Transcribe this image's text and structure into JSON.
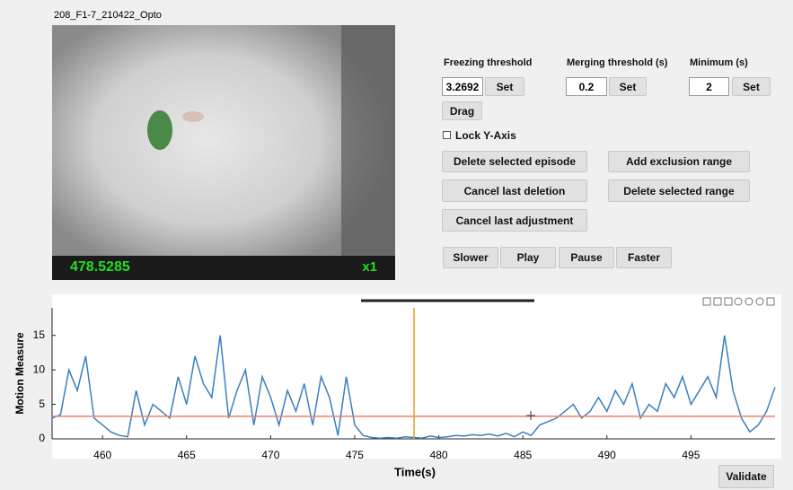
{
  "window": {
    "title": "208_F1-7_210422_Opto"
  },
  "video": {
    "speed": "x1"
  },
  "controls": {
    "freezing_label": "Freezing threshold",
    "merging_label": "Merging threshold (s)",
    "minimum_label": "Minimum (s)",
    "merging_value": "0.2",
    "minimum_value": "2",
    "set": "Set",
    "drag": "Drag",
    "lock_y": "Lock Y-Axis",
    "delete_episode": "Delete selected episode",
    "add_exclusion": "Add exclusion range",
    "cancel_deletion": "Cancel last deletion",
    "delete_range": "Delete selected range",
    "cancel_adjustment": "Cancel last adjustment",
    "slower": "Slower",
    "play": "Play",
    "pause": "Pause",
    "faster": "Faster",
    "validate": "Validate"
  },
  "chart_data": {
    "type": "line",
    "xlabel": "Time(s)",
    "ylabel": "Motion Measure",
    "xlim": [
      457,
      500
    ],
    "xticks": [
      460,
      465,
      470,
      475,
      480,
      485,
      490,
      495
    ],
    "ylim": [
      0,
      19
    ],
    "yticks": [
      0,
      5,
      10,
      15
    ],
    "color": "#3a7fbf",
    "threshold": 3.2692,
    "threshold_color": "#e8826a",
    "cursor_time": 478.5285,
    "cursor_color": "#e0a020",
    "x": [
      457,
      457.5,
      458,
      458.5,
      459,
      459.5,
      460,
      460.5,
      461,
      461.5,
      462,
      462.5,
      463,
      463.5,
      464,
      464.5,
      465,
      465.5,
      466,
      466.5,
      467,
      467.5,
      468,
      468.5,
      469,
      469.5,
      470,
      470.5,
      471,
      471.5,
      472,
      472.5,
      473,
      473.5,
      474,
      474.5,
      475,
      475.5,
      476,
      476.5,
      477,
      477.5,
      478,
      478.5,
      479,
      479.5,
      480,
      480.5,
      481,
      481.5,
      482,
      482.5,
      483,
      483.5,
      484,
      484.5,
      485,
      485.5,
      486,
      486.5,
      487,
      487.5,
      488,
      488.5,
      489,
      489.5,
      490,
      490.5,
      491,
      491.5,
      492,
      492.5,
      493,
      493.5,
      494,
      494.5,
      495,
      495.5,
      496,
      496.5,
      497,
      497.5,
      498,
      498.5,
      499,
      499.5,
      500
    ],
    "values": [
      3,
      3.5,
      10,
      7,
      12,
      3,
      2,
      1,
      0.5,
      0.3,
      7,
      2,
      5,
      4,
      3,
      9,
      5,
      12,
      8,
      6,
      15,
      3,
      7,
      10,
      2,
      9,
      6,
      2,
      7,
      4,
      8,
      2,
      9,
      6,
      0.5,
      9,
      2,
      0.5,
      0.2,
      0.1,
      0.2,
      0.1,
      0.3,
      0.2,
      0.1,
      0.4,
      0.2,
      0.3,
      0.5,
      0.4,
      0.6,
      0.5,
      0.7,
      0.4,
      0.8,
      0.3,
      1,
      0.5,
      2,
      2.5,
      3,
      4,
      5,
      3,
      4,
      6,
      4,
      7,
      5,
      8,
      3,
      5,
      4,
      8,
      6,
      9,
      5,
      7,
      9,
      6,
      15,
      7,
      3,
      1,
      2,
      4,
      7.5
    ]
  }
}
